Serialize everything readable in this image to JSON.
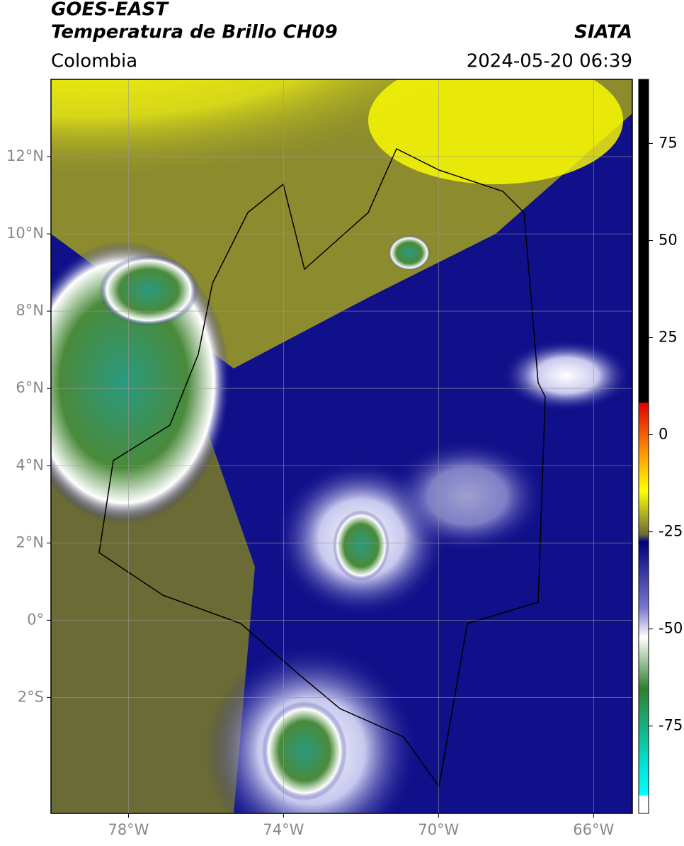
{
  "header": {
    "title": "GOES-EAST",
    "subtitle": "Temperatura de Brillo CH09",
    "source": "SIATA",
    "region": "Colombia",
    "datetime": "2024-05-20 06:39"
  },
  "map": {
    "xlim": [
      -80,
      -65
    ],
    "ylim": [
      -5,
      14
    ],
    "xticks": [
      {
        "value": -78,
        "label": "78°W"
      },
      {
        "value": -74,
        "label": "74°W"
      },
      {
        "value": -70,
        "label": "70°W"
      },
      {
        "value": -66,
        "label": "66°W"
      }
    ],
    "yticks": [
      {
        "value": 12,
        "label": "12°N"
      },
      {
        "value": 10,
        "label": "10°N"
      },
      {
        "value": 8,
        "label": "8°N"
      },
      {
        "value": 6,
        "label": "6°N"
      },
      {
        "value": 4,
        "label": "4°N"
      },
      {
        "value": 2,
        "label": "2°N"
      },
      {
        "value": 0,
        "label": "0°"
      },
      {
        "value": -2,
        "label": "2°S"
      }
    ],
    "grid": true
  },
  "colorbar": {
    "lim": [
      -97.5,
      91.5
    ],
    "ticks": [
      75,
      50,
      25,
      0,
      -25,
      -50,
      -75
    ]
  }
}
